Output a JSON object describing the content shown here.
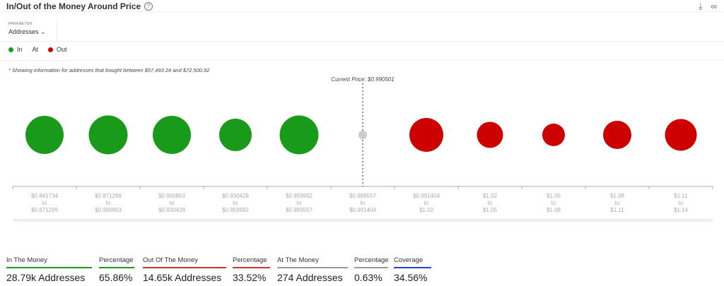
{
  "header": {
    "title": "In/Out of the Money Around Price",
    "help_icon": "help-circle-icon",
    "download_icon": "download-icon",
    "link_icon": "link-icon"
  },
  "parameter": {
    "label": "PARAMETER",
    "value": "Addresses"
  },
  "legend": [
    {
      "label": "In",
      "color": "#1a9a1a"
    },
    {
      "label": "At",
      "color": "#c8c8c8"
    },
    {
      "label": "Out",
      "color": "#cc0000"
    }
  ],
  "note": "* Showing information for addresses that bought between $57,493.24 and $72,500.92",
  "colors": {
    "in": "#1a9a1a",
    "at": "#cccccc",
    "out": "#cc0000"
  },
  "chart_data": {
    "type": "bubble",
    "current_price_label": "Current Price: $0.990501",
    "categories": [
      {
        "from": "$0.841734",
        "to": "$0.871299",
        "status": "in",
        "size": 0.54
      },
      {
        "from": "$0.871299",
        "to": "$0.900863",
        "status": "in",
        "size": 0.55
      },
      {
        "from": "$0.900863",
        "to": "$0.930428",
        "status": "in",
        "size": 0.54
      },
      {
        "from": "$0.930428",
        "to": "$0.959992",
        "status": "in",
        "size": 0.46
      },
      {
        "from": "$0.959992",
        "to": "$0.989557",
        "status": "in",
        "size": 0.55
      },
      {
        "from": "$0.989557",
        "to": "$0.991404",
        "status": "at",
        "size": 0.12
      },
      {
        "from": "$0.991404",
        "to": "$1.02",
        "status": "out",
        "size": 0.48
      },
      {
        "from": "$1.02",
        "to": "$1.05",
        "status": "out",
        "size": 0.37
      },
      {
        "from": "$1.05",
        "to": "$1.08",
        "status": "out",
        "size": 0.32
      },
      {
        "from": "$1.08",
        "to": "$1.11",
        "status": "out",
        "size": 0.4
      },
      {
        "from": "$1.11",
        "to": "$1.14",
        "status": "out",
        "size": 0.45
      }
    ],
    "to_word": "to"
  },
  "stats": [
    {
      "label": "In The Money",
      "value": "28.79k Addresses",
      "color": "#1a9a1a"
    },
    {
      "label": "Percentage",
      "value": "65.86%",
      "color": "#1a9a1a"
    },
    {
      "label": "Out Of The Money",
      "value": "14.65k Addresses",
      "color": "#cc3333"
    },
    {
      "label": "Percentage",
      "value": "33.52%",
      "color": "#cc3333"
    },
    {
      "label": "At The Money",
      "value": "274 Addresses",
      "color": "#999999"
    },
    {
      "label": "Percentage",
      "value": "0.63%",
      "color": "#999999"
    },
    {
      "label": "Coverage",
      "value": "34.56%",
      "color": "#2a3fd4"
    }
  ]
}
